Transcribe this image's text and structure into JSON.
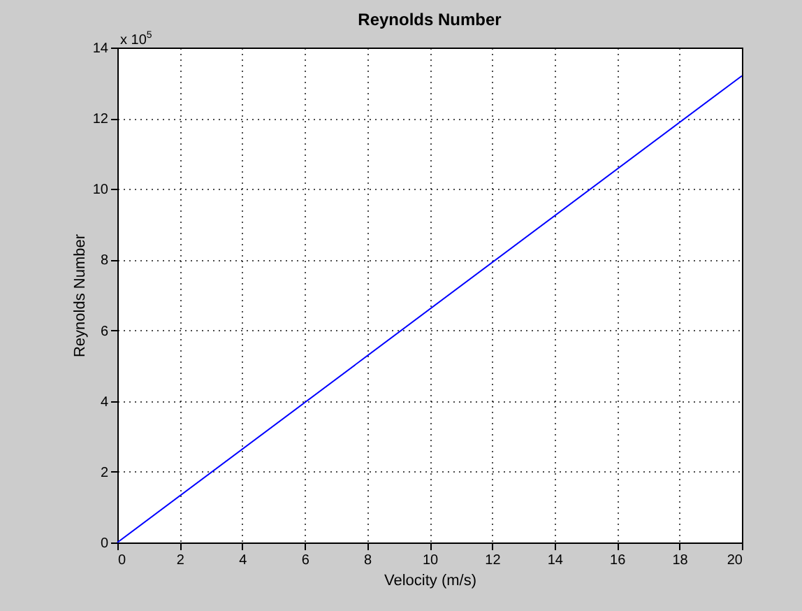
{
  "chart_data": {
    "type": "line",
    "title": "Reynolds Number",
    "xlabel": "Velocity (m/s)",
    "ylabel": "Reynolds Number",
    "x": [
      0,
      20
    ],
    "series": [
      {
        "color": "#0000ff",
        "values": [
          0,
          13.2
        ]
      }
    ],
    "xlim": [
      0,
      20
    ],
    "xticks": [
      0,
      2,
      4,
      6,
      8,
      10,
      12,
      14,
      16,
      18,
      20
    ],
    "ylim": [
      0,
      14
    ],
    "yticks": [
      0,
      2,
      4,
      6,
      8,
      10,
      12,
      14
    ],
    "grid": true,
    "annotations": [
      "x 10$^{5}$"
    ]
  }
}
